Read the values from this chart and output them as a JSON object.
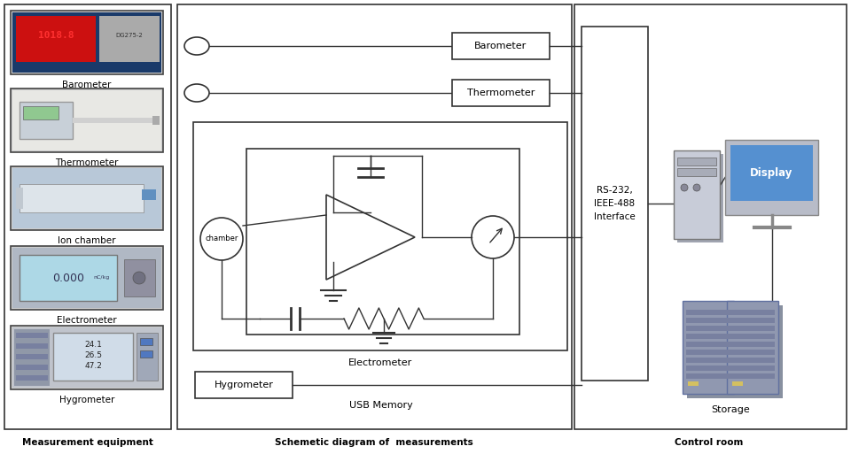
{
  "bg_color": "#ffffff",
  "border_color": "#333333",
  "line_color": "#333333",
  "section1_label": "Measurement equipment",
  "section2_label": "Schemetic diagram of  measurements",
  "section3_label": "Control room",
  "equipment_labels": [
    "Barometer",
    "Thermometer",
    "Ion chamber",
    "Electrometer",
    "Hygrometer"
  ],
  "schematic_labels": {
    "barometer_box": "Barometer",
    "thermometer_box": "Thermometer",
    "electrometer_label": "Electrometer",
    "chamber_label": "chamber",
    "hygrometer_box": "Hygrometer",
    "usb_label": "USB Memory"
  },
  "control_labels": {
    "interface": "RS-232,\nIEEE-488\nInterface",
    "display": "Display",
    "storage": "Storage"
  }
}
